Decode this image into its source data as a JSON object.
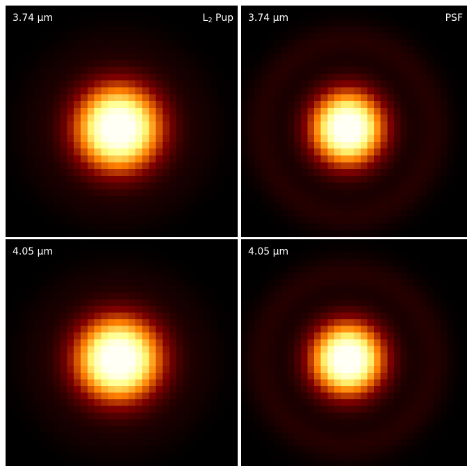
{
  "panels": [
    {
      "wavelength": "3.74 µm",
      "object_main": "L",
      "object_sub": "2",
      "object_rest": " Pup",
      "kind": "star"
    },
    {
      "wavelength": "3.74 µm",
      "object_main": "PSF",
      "object_sub": "",
      "object_rest": "",
      "kind": "psf"
    },
    {
      "wavelength": "4.05 µm",
      "object_main": "",
      "object_sub": "",
      "object_rest": "",
      "kind": "star"
    },
    {
      "wavelength": "4.05 µm",
      "object_main": "",
      "object_sub": "",
      "object_rest": "",
      "kind": "psf"
    }
  ],
  "colormap": "afmhot"
}
